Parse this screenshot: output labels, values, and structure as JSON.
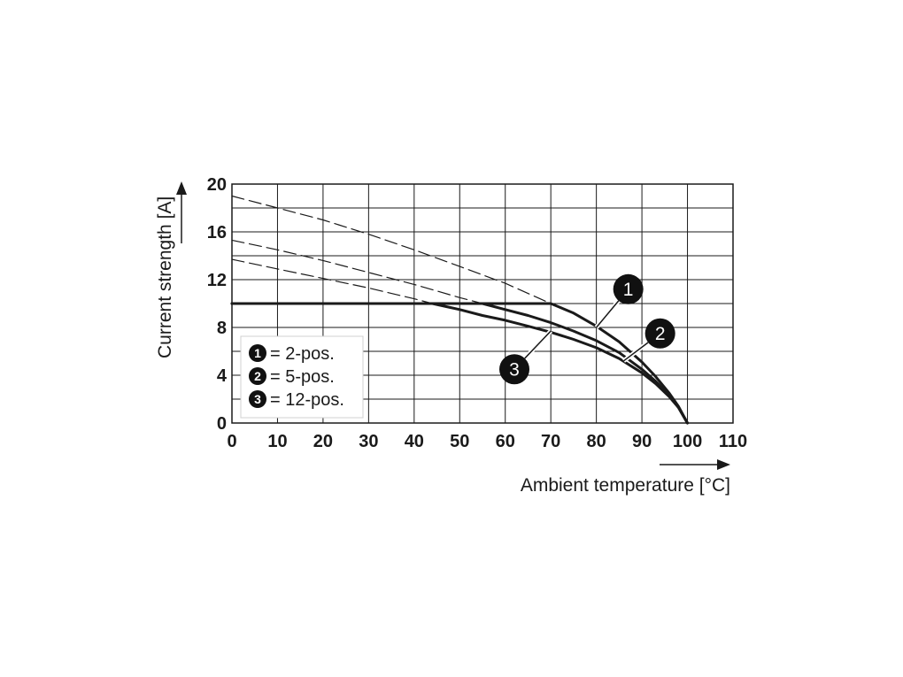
{
  "chart_data": {
    "type": "line",
    "xlabel": "Ambient temperature [°C]",
    "ylabel": "Current strength [A]",
    "xlim": [
      0,
      110
    ],
    "ylim": [
      0,
      20
    ],
    "x_ticks": [
      "0",
      "10",
      "20",
      "30",
      "40",
      "50",
      "60",
      "70",
      "80",
      "90",
      "100",
      "110"
    ],
    "y_ticks": [
      "0",
      "4",
      "8",
      "12",
      "16",
      "20"
    ],
    "grid": true,
    "legend_position": "bottom-left",
    "legend": [
      {
        "marker": "1",
        "label": "= 2-pos."
      },
      {
        "marker": "2",
        "label": "= 5-pos."
      },
      {
        "marker": "3",
        "label": "= 12-pos."
      }
    ],
    "series": [
      {
        "name": "1",
        "style": "solid",
        "x": [
          0,
          70,
          75,
          80,
          85,
          90,
          93,
          96,
          98,
          100
        ],
        "y": [
          10,
          10,
          9.2,
          8.1,
          6.8,
          5.1,
          3.9,
          2.5,
          1.4,
          0
        ]
      },
      {
        "name": "2",
        "style": "solid",
        "x": [
          0,
          55,
          60,
          65,
          70,
          75,
          80,
          85,
          90,
          93,
          96,
          98,
          100
        ],
        "y": [
          10,
          10,
          9.5,
          9.0,
          8.4,
          7.7,
          6.9,
          5.9,
          4.5,
          3.5,
          2.3,
          1.3,
          0
        ]
      },
      {
        "name": "3",
        "style": "solid",
        "x": [
          0,
          44,
          50,
          55,
          60,
          65,
          70,
          75,
          80,
          85,
          90,
          93,
          96,
          98,
          100
        ],
        "y": [
          10,
          10,
          9.5,
          9.0,
          8.6,
          8.1,
          7.6,
          7.0,
          6.3,
          5.4,
          4.2,
          3.3,
          2.2,
          1.3,
          0
        ]
      },
      {
        "name": "1",
        "style": "dashed",
        "x": [
          0,
          10,
          20,
          30,
          40,
          50,
          60,
          70
        ],
        "y": [
          19.0,
          18.0,
          17.0,
          15.8,
          14.5,
          13.1,
          11.7,
          10
        ]
      },
      {
        "name": "2",
        "style": "dashed",
        "x": [
          0,
          10,
          20,
          30,
          40,
          50,
          55
        ],
        "y": [
          15.3,
          14.5,
          13.6,
          12.6,
          11.6,
          10.5,
          10
        ]
      },
      {
        "name": "3",
        "style": "dashed",
        "x": [
          0,
          10,
          20,
          30,
          40,
          44
        ],
        "y": [
          13.7,
          12.9,
          12.1,
          11.3,
          10.4,
          10
        ]
      }
    ],
    "callouts": [
      {
        "number": "1",
        "x": 87,
        "y": 11.2,
        "tip_x": 80,
        "tip_y": 8.0
      },
      {
        "number": "2",
        "x": 94,
        "y": 7.5,
        "tip_x": 86,
        "tip_y": 5.2
      },
      {
        "number": "3",
        "x": 62,
        "y": 4.5,
        "tip_x": 70,
        "tip_y": 7.7
      }
    ]
  }
}
